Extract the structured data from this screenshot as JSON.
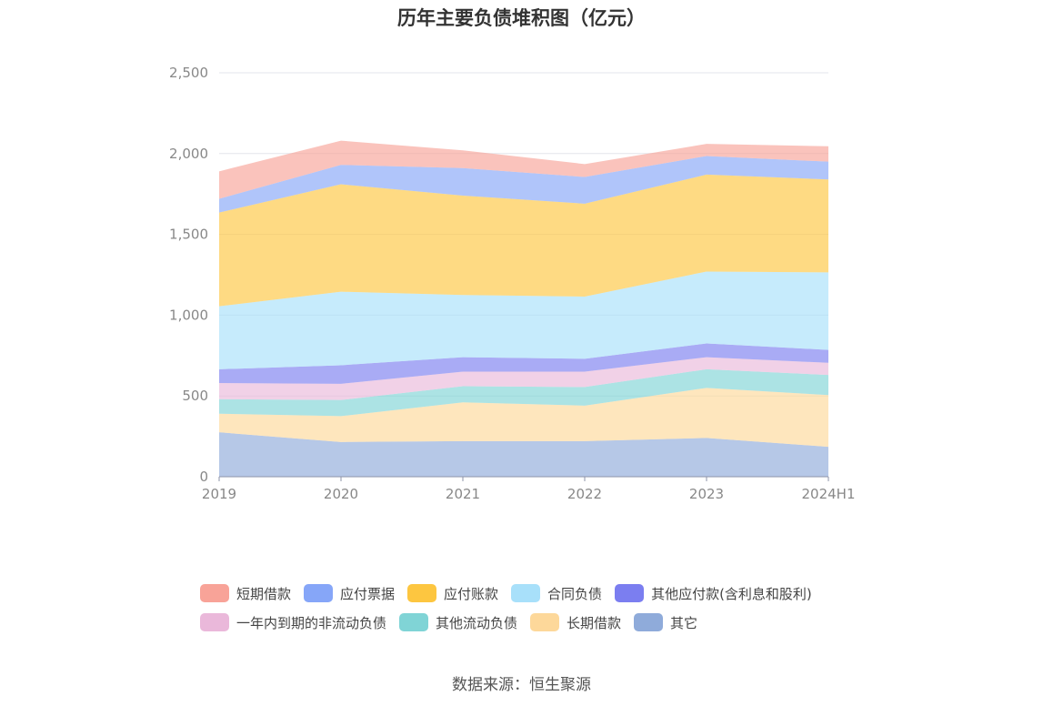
{
  "chart_data": {
    "type": "area",
    "stacked": true,
    "title": "历年主要负债堆积图（亿元）",
    "x": [
      "2019",
      "2020",
      "2021",
      "2022",
      "2023",
      "2024H1"
    ],
    "yticks": [
      "0",
      "500",
      "1,000",
      "1,500",
      "2,000",
      "2,500"
    ],
    "ylim": [
      0,
      2500
    ],
    "grid": true,
    "legend_position": "bottom",
    "series": [
      {
        "name": "其它",
        "color": "#8fabda",
        "values": [
          275,
          215,
          220,
          220,
          240,
          185
        ]
      },
      {
        "name": "长期借款",
        "color": "#fdd89a",
        "values": [
          115,
          160,
          240,
          220,
          310,
          320
        ]
      },
      {
        "name": "其他流动负债",
        "color": "#80d4d6",
        "values": [
          90,
          100,
          100,
          115,
          115,
          125
        ]
      },
      {
        "name": "一年内到期的非流动负债",
        "color": "#eab8da",
        "values": [
          100,
          100,
          90,
          95,
          75,
          75
        ]
      },
      {
        "name": "其他应付款(含利息和股利)",
        "color": "#7b7ef0",
        "values": [
          85,
          115,
          90,
          80,
          85,
          80
        ]
      },
      {
        "name": "合同负债",
        "color": "#a8e0fa",
        "values": [
          390,
          455,
          385,
          385,
          445,
          480
        ]
      },
      {
        "name": "应付账款",
        "color": "#fdc640",
        "values": [
          580,
          665,
          615,
          575,
          600,
          575
        ]
      },
      {
        "name": "应付票据",
        "color": "#86a6f8",
        "values": [
          85,
          120,
          170,
          165,
          115,
          110
        ]
      },
      {
        "name": "短期借款",
        "color": "#f8a398",
        "values": [
          170,
          150,
          110,
          80,
          75,
          95
        ]
      }
    ]
  },
  "legend": {
    "row1": [
      "短期借款",
      "应付票据",
      "应付账款",
      "合同负债",
      "其他应付款(含利息和股利)"
    ],
    "row2": [
      "一年内到期的非流动负债",
      "其他流动负债",
      "长期借款",
      "其它"
    ]
  },
  "source": "数据来源：恒生聚源"
}
